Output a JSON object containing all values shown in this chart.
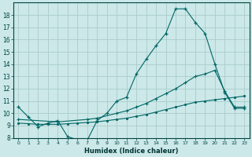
{
  "xlabel": "Humidex (Indice chaleur)",
  "bg_color": "#cce8e8",
  "grid_color": "#aacccc",
  "line_color": "#006666",
  "line1_x": [
    0,
    1,
    2,
    3,
    4,
    5,
    6,
    7,
    8,
    9,
    10,
    11,
    12,
    13,
    14,
    15,
    16,
    17,
    18,
    19,
    20,
    21,
    22,
    23
  ],
  "line1_y": [
    10.5,
    9.7,
    8.9,
    9.2,
    9.4,
    8.1,
    7.85,
    7.8,
    9.4,
    10.0,
    11.0,
    11.3,
    13.2,
    14.4,
    15.5,
    16.5,
    18.5,
    18.5,
    17.4,
    16.5,
    14.0,
    11.7,
    10.4,
    10.4
  ],
  "line2_x": [
    0,
    4,
    7,
    8,
    10,
    11,
    12,
    13,
    14,
    15,
    16,
    17,
    18,
    19,
    20,
    21,
    22,
    23
  ],
  "line2_y": [
    9.5,
    9.3,
    9.5,
    9.6,
    10.0,
    10.2,
    10.5,
    10.8,
    11.2,
    11.6,
    12.0,
    12.5,
    13.0,
    13.2,
    13.5,
    11.8,
    10.5,
    10.5
  ],
  "line3_x": [
    0,
    1,
    2,
    3,
    4,
    5,
    6,
    7,
    8,
    9,
    10,
    11,
    12,
    13,
    14,
    15,
    16,
    17,
    18,
    19,
    20,
    21,
    22,
    23
  ],
  "line3_y": [
    9.2,
    9.15,
    9.1,
    9.1,
    9.1,
    9.15,
    9.2,
    9.25,
    9.3,
    9.4,
    9.5,
    9.6,
    9.75,
    9.9,
    10.1,
    10.3,
    10.5,
    10.7,
    10.9,
    11.0,
    11.1,
    11.2,
    11.3,
    11.4
  ],
  "ylim": [
    8,
    19
  ],
  "xlim": [
    -0.5,
    23.5
  ],
  "yticks": [
    8,
    9,
    10,
    11,
    12,
    13,
    14,
    15,
    16,
    17,
    18
  ],
  "xticks": [
    0,
    1,
    2,
    3,
    4,
    5,
    6,
    7,
    8,
    9,
    10,
    11,
    12,
    13,
    14,
    15,
    16,
    17,
    18,
    19,
    20,
    21,
    22,
    23
  ]
}
